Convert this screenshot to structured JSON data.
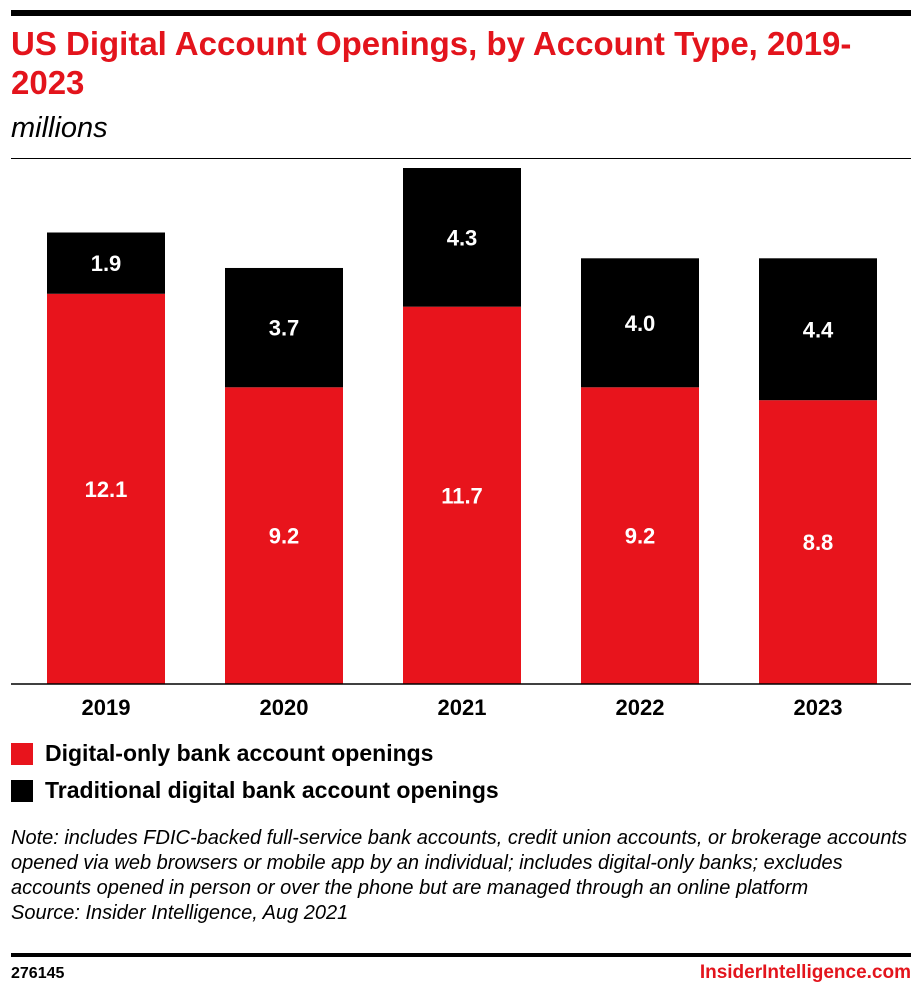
{
  "title": "US Digital Account Openings, by Account Type, 2019-2023",
  "subtitle": "millions",
  "chart_data": {
    "type": "bar",
    "stacked": true,
    "categories": [
      "2019",
      "2020",
      "2021",
      "2022",
      "2023"
    ],
    "series": [
      {
        "name": "Digital-only bank account openings",
        "color": "#e8141c",
        "values": [
          12.1,
          9.2,
          11.7,
          9.2,
          8.8
        ]
      },
      {
        "name": "Traditional digital bank account openings",
        "color": "#000000",
        "values": [
          1.9,
          3.7,
          4.3,
          4.0,
          4.4
        ]
      }
    ],
    "legend": "bottom-left",
    "grid": false
  },
  "note": "Note: includes FDIC-backed full-service bank accounts, credit union accounts, or brokerage accounts opened via web browsers or mobile app by an individual; includes digital-only banks; excludes accounts opened in person or over the phone but are managed through an online platform",
  "source": "Source: Insider Intelligence, Aug 2021",
  "footer": {
    "id": "276145",
    "brand": "InsiderIntelligence.com"
  }
}
